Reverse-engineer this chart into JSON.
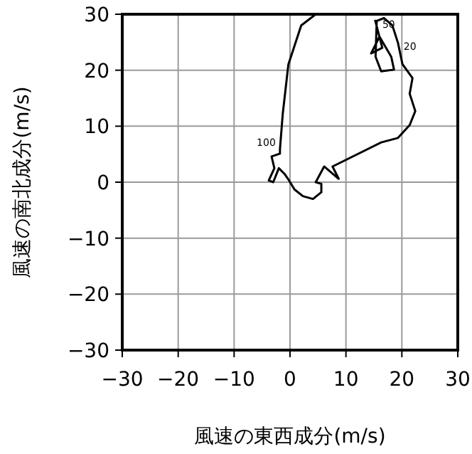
{
  "chart_data": {
    "type": "line",
    "xlabel": "風速の東西成分(m/s)",
    "ylabel": "風速の南北成分(m/s)",
    "xlim": [
      -30,
      30
    ],
    "ylim": [
      -30,
      30
    ],
    "xticks": [
      -30,
      -20,
      -10,
      0,
      10,
      20,
      30
    ],
    "yticks": [
      -30,
      -20,
      -10,
      0,
      10,
      20,
      30
    ],
    "grid": true,
    "series": [
      {
        "color": "#000000",
        "x": [
          4.6,
          2,
          -0.3,
          -1.3,
          -1.8,
          -1.8,
          -3.3,
          -2.8,
          -3.8,
          -3,
          -2,
          -1,
          -0.3,
          0.8,
          2.3,
          4.1,
          5.6,
          5.6,
          4.6,
          6.1,
          8.7,
          7.6,
          16.3,
          19.3,
          21.4,
          22.4,
          21.4,
          21.9,
          20.1,
          19.3,
          18.3,
          16.8,
          15.5,
          15.3,
          16.3,
          18.6,
          18.1,
          16,
          14.5,
          16.5,
          15.2
        ],
        "values": [
          30,
          28,
          21,
          12.2,
          5.9,
          5.1,
          4.6,
          2.5,
          0.3,
          0,
          2.5,
          1.5,
          0.5,
          -1.3,
          -2.5,
          -3,
          -1.8,
          -0.3,
          0,
          2.8,
          0.6,
          2.8,
          7.1,
          7.9,
          10.2,
          12.7,
          15.8,
          18.6,
          21.1,
          24.9,
          28,
          29.3,
          28.8,
          22.4,
          19.8,
          20.1,
          22.4,
          26,
          23,
          24,
          29
        ]
      }
    ],
    "annotations": [
      {
        "text": "100",
        "x": -1.8,
        "y": 5.9
      },
      {
        "text": "50",
        "x": 15.5,
        "y": 28.8
      },
      {
        "text": "20",
        "x": 19.3,
        "y": 24.9
      }
    ]
  }
}
